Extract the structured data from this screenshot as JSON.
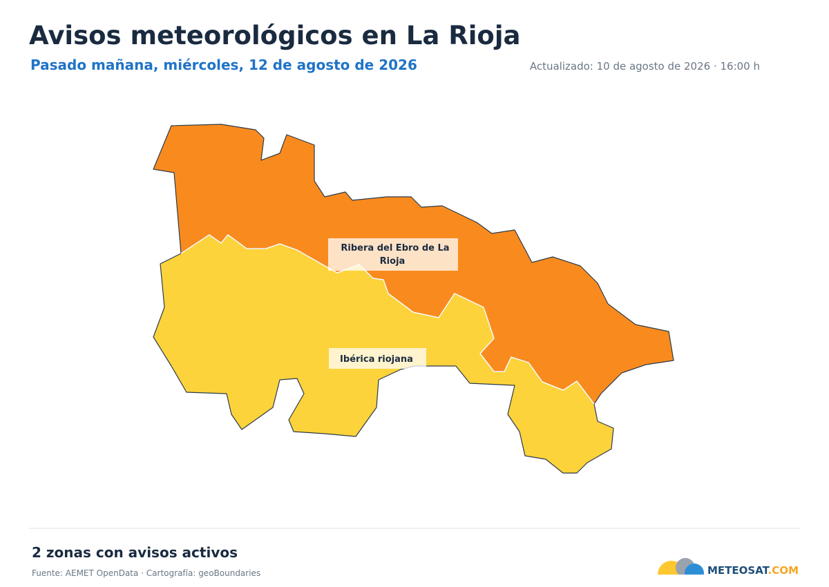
{
  "header": {
    "title": "Avisos meteorológicos en La Rioja",
    "subtitle": "Pasado mañana, miércoles, 12 de agosto de 2026",
    "updated": "Actualizado: 10 de agosto de 2026 · 16:00 h"
  },
  "map": {
    "zones": [
      {
        "label": "Ribera del Ebro de La Rioja",
        "color": "#f98b1e"
      },
      {
        "label": "Ibérica riojana",
        "color": "#fdd33b"
      }
    ]
  },
  "footer": {
    "summary": "2 zonas con avisos activos",
    "source": "Fuente: AEMET OpenData · Cartografía: geoBoundaries",
    "logo": [
      "METEOSAT",
      ".COM"
    ]
  }
}
